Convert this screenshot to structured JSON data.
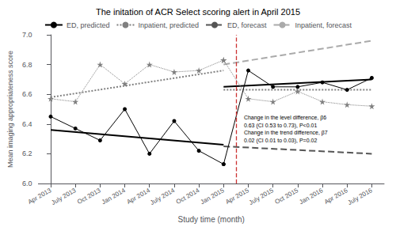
{
  "chart_data": {
    "type": "line",
    "title": "The initation of ACR Select scoring alert in April 2015",
    "xlabel": "Study time (month)",
    "ylabel": "Mean imaging appropriateness score",
    "annotations": [
      "Change in the level difference, β6\n0.63 (CI 0.53 to 0.73), P<0.01\nChange in the trend difference, β7\n0.02 (CI 0.01 to 0.03), P=0.02"
    ],
    "xlim": [
      -0.5,
      13.5
    ],
    "xticks": [
      {
        "value": 0,
        "label": "Apr 2013"
      },
      {
        "value": 1,
        "label": "July 2013"
      },
      {
        "value": 2,
        "label": "Oct 2013"
      },
      {
        "value": 3,
        "label": "Jan 2014"
      },
      {
        "value": 4,
        "label": "Apr 2014"
      },
      {
        "value": 5,
        "label": "July 2014"
      },
      {
        "value": 6,
        "label": "Oct 2014"
      },
      {
        "value": 7,
        "label": "Jan 2015"
      },
      {
        "value": 8,
        "label": "Apr 2015"
      },
      {
        "value": 9,
        "label": "July 2015"
      },
      {
        "value": 10,
        "label": "Oct 2015"
      },
      {
        "value": 11,
        "label": "Jan 2016"
      },
      {
        "value": 12,
        "label": "Apr 2016"
      },
      {
        "value": 13,
        "label": "July 2016"
      }
    ],
    "ylim": [
      6.0,
      7.0
    ],
    "yticks": [
      {
        "value": 6.0,
        "label": "6.0"
      },
      6.2,
      6.4,
      6.6,
      6.8,
      {
        "value": 7.0,
        "label": "7.0"
      }
    ],
    "grid": false,
    "legend": "top",
    "series": [
      {
        "type": "line",
        "color": "black",
        "marker": "circle",
        "line_style": "solid",
        "x": [
          0,
          1,
          2,
          3,
          4,
          5,
          6,
          7
        ],
        "values": [
          6.45,
          6.37,
          6.29,
          6.5,
          6.2,
          6.42,
          6.22,
          6.13
        ]
      },
      {
        "type": "line",
        "color": "black",
        "marker": "circle",
        "line_style": "solid",
        "x": [
          7,
          8,
          9,
          10,
          11,
          12,
          13
        ],
        "values": [
          6.13,
          6.76,
          6.65,
          6.65,
          6.68,
          6.63,
          6.71
        ]
      },
      {
        "type": "line",
        "color": "gray",
        "marker": "star",
        "line_style": "dotted",
        "x": [
          0,
          1,
          2,
          3,
          4,
          5,
          6,
          7
        ],
        "values": [
          6.57,
          6.55,
          6.8,
          6.67,
          6.8,
          6.75,
          6.76,
          6.83
        ]
      },
      {
        "type": "line",
        "color": "gray",
        "marker": "star",
        "line_style": "dotted",
        "x": [
          7,
          8,
          9,
          10,
          11,
          12,
          13
        ],
        "values": [
          6.83,
          6.57,
          6.55,
          6.62,
          6.55,
          6.53,
          6.52
        ]
      },
      {
        "type": "line",
        "name": "ED, predicted",
        "color": "black",
        "line_style": "solid",
        "x": [
          0,
          7
        ],
        "values": [
          6.36,
          6.26
        ]
      },
      {
        "type": "line",
        "name": "ED, predicted",
        "color": "black",
        "line_style": "solid",
        "x": [
          7,
          13
        ],
        "values": [
          6.65,
          6.7
        ]
      },
      {
        "type": "line",
        "name": "Inpatient, predicted",
        "color": "gray",
        "line_style": "dotted",
        "x": [
          0,
          7
        ],
        "values": [
          6.58,
          6.76
        ]
      },
      {
        "type": "line",
        "name": "Inpatient, predicted",
        "color": "gray",
        "line_style": "dotted",
        "x": [
          7,
          13
        ],
        "values": [
          6.63,
          6.63
        ]
      },
      {
        "type": "line",
        "name": "ED, forecast",
        "color": "#555555",
        "line_style": "dashed",
        "x": [
          7,
          13
        ],
        "values": [
          6.25,
          6.2
        ]
      },
      {
        "type": "line",
        "name": "Inpatient, forecast",
        "color": "#aaaaaa",
        "line_style": "dashed",
        "x": [
          7,
          13
        ],
        "values": [
          6.8,
          6.96
        ]
      },
      {
        "type": "vline",
        "color": "#cc3333",
        "line_style": "dashed",
        "x": 7.5
      }
    ]
  }
}
